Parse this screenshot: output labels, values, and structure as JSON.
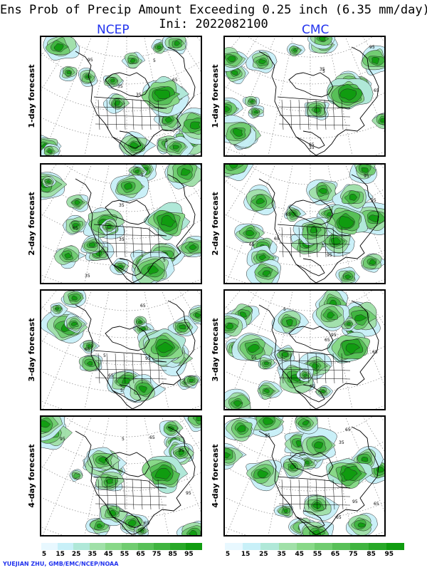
{
  "title": "Ens Prob of Precip Amount Exceeding 0.25 inch (6.35 mm/day)",
  "init": "Ini: 2022082100",
  "columns": [
    "NCEP",
    "CMC"
  ],
  "rows": [
    "1-day forecast",
    "2-day forecast",
    "3-day forecast",
    "4-day forecast"
  ],
  "colorbar": {
    "labels": [
      "5",
      "15",
      "25",
      "35",
      "45",
      "55",
      "65",
      "75",
      "85",
      "95"
    ],
    "colors": [
      "#e8f8ff",
      "#c8f0f8",
      "#b0e8d8",
      "#a0e0a8",
      "#88d888",
      "#70cc70",
      "#58c058",
      "#40b440",
      "#28a828",
      "#109c10"
    ]
  },
  "credit": "YUEJIAN ZHU, GMB/EMC/NCEP/NOAA",
  "contour_labels": [
    "5",
    "35",
    "65",
    "95"
  ]
}
